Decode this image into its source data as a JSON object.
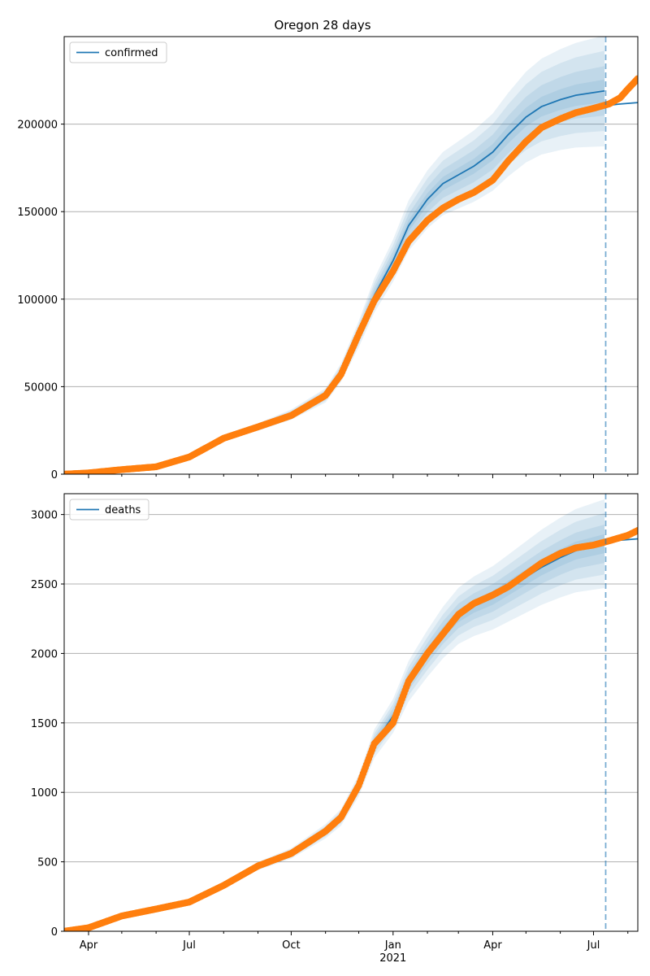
{
  "title": "Oregon 28 days",
  "chart_data": [
    {
      "type": "line",
      "title": "Oregon 28 days",
      "legend": "confirmed",
      "legend_location": "upper-left",
      "x_axis": "date",
      "xlim": [
        "2020-03-10",
        "2021-08-10"
      ],
      "ylim": [
        0,
        250000
      ],
      "yticks": [
        0,
        50000,
        100000,
        150000,
        200000
      ],
      "grid": "horizontal",
      "forecast_start": "2021-07-12",
      "series": [
        {
          "name": "confirmed",
          "role": "model median",
          "color": "#1f77b4",
          "points": [
            [
              "2020-03-10",
              0
            ],
            [
              "2020-04-01",
              600
            ],
            [
              "2020-05-01",
              2800
            ],
            [
              "2020-06-01",
              4800
            ],
            [
              "2020-07-01",
              10500
            ],
            [
              "2020-08-01",
              21000
            ],
            [
              "2020-09-01",
              27000
            ],
            [
              "2020-10-01",
              34000
            ],
            [
              "2020-11-01",
              45000
            ],
            [
              "2020-11-15",
              58000
            ],
            [
              "2020-12-01",
              80000
            ],
            [
              "2020-12-15",
              102000
            ],
            [
              "2021-01-01",
              122000
            ],
            [
              "2021-01-15",
              142000
            ],
            [
              "2021-02-01",
              157000
            ],
            [
              "2021-02-15",
              166000
            ],
            [
              "2021-03-01",
              171000
            ],
            [
              "2021-03-15",
              176000
            ],
            [
              "2021-04-01",
              184000
            ],
            [
              "2021-04-15",
              194000
            ],
            [
              "2021-05-01",
              204000
            ],
            [
              "2021-05-15",
              210000
            ],
            [
              "2021-06-01",
              214000
            ],
            [
              "2021-06-15",
              216500
            ],
            [
              "2021-07-11",
              219000
            ]
          ]
        },
        {
          "name": "forecast",
          "role": "projection",
          "color": "#1f77b4",
          "points": [
            [
              "2021-07-12",
              210500
            ],
            [
              "2021-07-25",
              211500
            ],
            [
              "2021-08-10",
              212300
            ]
          ]
        },
        {
          "name": "observed",
          "role": "observed data",
          "color": "#ff7f0e",
          "points": [
            [
              "2020-03-10",
              0
            ],
            [
              "2020-04-01",
              700
            ],
            [
              "2020-05-01",
              2600
            ],
            [
              "2020-06-01",
              4200
            ],
            [
              "2020-07-01",
              9800
            ],
            [
              "2020-08-01",
              20500
            ],
            [
              "2020-09-01",
              27000
            ],
            [
              "2020-10-01",
              33500
            ],
            [
              "2020-11-01",
              45000
            ],
            [
              "2020-11-15",
              57000
            ],
            [
              "2020-12-01",
              80000
            ],
            [
              "2020-12-15",
              99000
            ],
            [
              "2021-01-01",
              116000
            ],
            [
              "2021-01-15",
              133000
            ],
            [
              "2021-02-01",
              145000
            ],
            [
              "2021-02-15",
              152000
            ],
            [
              "2021-03-01",
              157000
            ],
            [
              "2021-03-15",
              161000
            ],
            [
              "2021-04-01",
              168000
            ],
            [
              "2021-04-15",
              179000
            ],
            [
              "2021-05-01",
              190000
            ],
            [
              "2021-05-15",
              198000
            ],
            [
              "2021-06-01",
              203000
            ],
            [
              "2021-06-15",
              206500
            ],
            [
              "2021-07-01",
              209000
            ],
            [
              "2021-07-15",
              211500
            ],
            [
              "2021-07-25",
              215000
            ],
            [
              "2021-08-01",
              220000
            ],
            [
              "2021-08-10",
              226000
            ]
          ]
        }
      ],
      "bands_relative_halfwidth": [
        0.025,
        0.06,
        0.1,
        0.14
      ]
    },
    {
      "type": "line",
      "legend": "deaths",
      "legend_location": "upper-left",
      "x_axis": "date",
      "xlim": [
        "2020-03-10",
        "2021-08-10"
      ],
      "ylim": [
        0,
        3150
      ],
      "yticks": [
        0,
        500,
        1000,
        1500,
        2000,
        2500,
        3000
      ],
      "xticks": [
        {
          "date": "2020-04-01",
          "label": "Apr"
        },
        {
          "date": "2020-07-01",
          "label": "Jul"
        },
        {
          "date": "2020-10-01",
          "label": "Oct"
        },
        {
          "date": "2021-01-01",
          "label": "Jan",
          "sublabel": "2021"
        },
        {
          "date": "2021-04-01",
          "label": "Apr"
        },
        {
          "date": "2021-07-01",
          "label": "Jul"
        }
      ],
      "grid": "horizontal",
      "forecast_start": "2021-07-12",
      "series": [
        {
          "name": "deaths",
          "role": "model median",
          "color": "#1f77b4",
          "points": [
            [
              "2020-03-10",
              0
            ],
            [
              "2020-04-01",
              20
            ],
            [
              "2020-05-01",
              110
            ],
            [
              "2020-06-01",
              160
            ],
            [
              "2020-07-01",
              210
            ],
            [
              "2020-08-01",
              330
            ],
            [
              "2020-09-01",
              470
            ],
            [
              "2020-10-01",
              560
            ],
            [
              "2020-11-01",
              720
            ],
            [
              "2020-11-15",
              820
            ],
            [
              "2020-12-01",
              1050
            ],
            [
              "2020-12-15",
              1350
            ],
            [
              "2021-01-01",
              1550
            ],
            [
              "2021-01-15",
              1800
            ],
            [
              "2021-02-01",
              2000
            ],
            [
              "2021-02-15",
              2150
            ],
            [
              "2021-03-01",
              2270
            ],
            [
              "2021-03-15",
              2340
            ],
            [
              "2021-04-01",
              2400
            ],
            [
              "2021-04-15",
              2470
            ],
            [
              "2021-05-01",
              2550
            ],
            [
              "2021-05-15",
              2620
            ],
            [
              "2021-06-01",
              2690
            ],
            [
              "2021-06-15",
              2740
            ],
            [
              "2021-07-11",
              2790
            ]
          ]
        },
        {
          "name": "forecast",
          "role": "projection",
          "color": "#1f77b4",
          "points": [
            [
              "2021-07-12",
              2800
            ],
            [
              "2021-07-25",
              2815
            ],
            [
              "2021-08-10",
              2825
            ]
          ]
        },
        {
          "name": "observed",
          "role": "observed data",
          "color": "#ff7f0e",
          "points": [
            [
              "2020-03-10",
              0
            ],
            [
              "2020-04-01",
              25
            ],
            [
              "2020-05-01",
              110
            ],
            [
              "2020-06-01",
              160
            ],
            [
              "2020-07-01",
              210
            ],
            [
              "2020-08-01",
              330
            ],
            [
              "2020-09-01",
              470
            ],
            [
              "2020-10-01",
              560
            ],
            [
              "2020-11-01",
              720
            ],
            [
              "2020-11-15",
              820
            ],
            [
              "2020-12-01",
              1050
            ],
            [
              "2020-12-15",
              1350
            ],
            [
              "2021-01-01",
              1500
            ],
            [
              "2021-01-15",
              1800
            ],
            [
              "2021-02-01",
              2000
            ],
            [
              "2021-02-15",
              2140
            ],
            [
              "2021-03-01",
              2280
            ],
            [
              "2021-03-15",
              2360
            ],
            [
              "2021-04-01",
              2420
            ],
            [
              "2021-04-15",
              2480
            ],
            [
              "2021-05-01",
              2570
            ],
            [
              "2021-05-15",
              2650
            ],
            [
              "2021-06-01",
              2720
            ],
            [
              "2021-06-15",
              2760
            ],
            [
              "2021-07-01",
              2780
            ],
            [
              "2021-07-15",
              2810
            ],
            [
              "2021-08-01",
              2850
            ],
            [
              "2021-08-10",
              2885
            ]
          ]
        }
      ],
      "bands_relative_halfwidth": [
        0.02,
        0.045,
        0.075,
        0.11
      ]
    }
  ],
  "colors": {
    "model": "#1f77b4",
    "observed": "#ff7f0e",
    "grid": "#b0b0b0",
    "forecast_line": "#1f77b4"
  }
}
